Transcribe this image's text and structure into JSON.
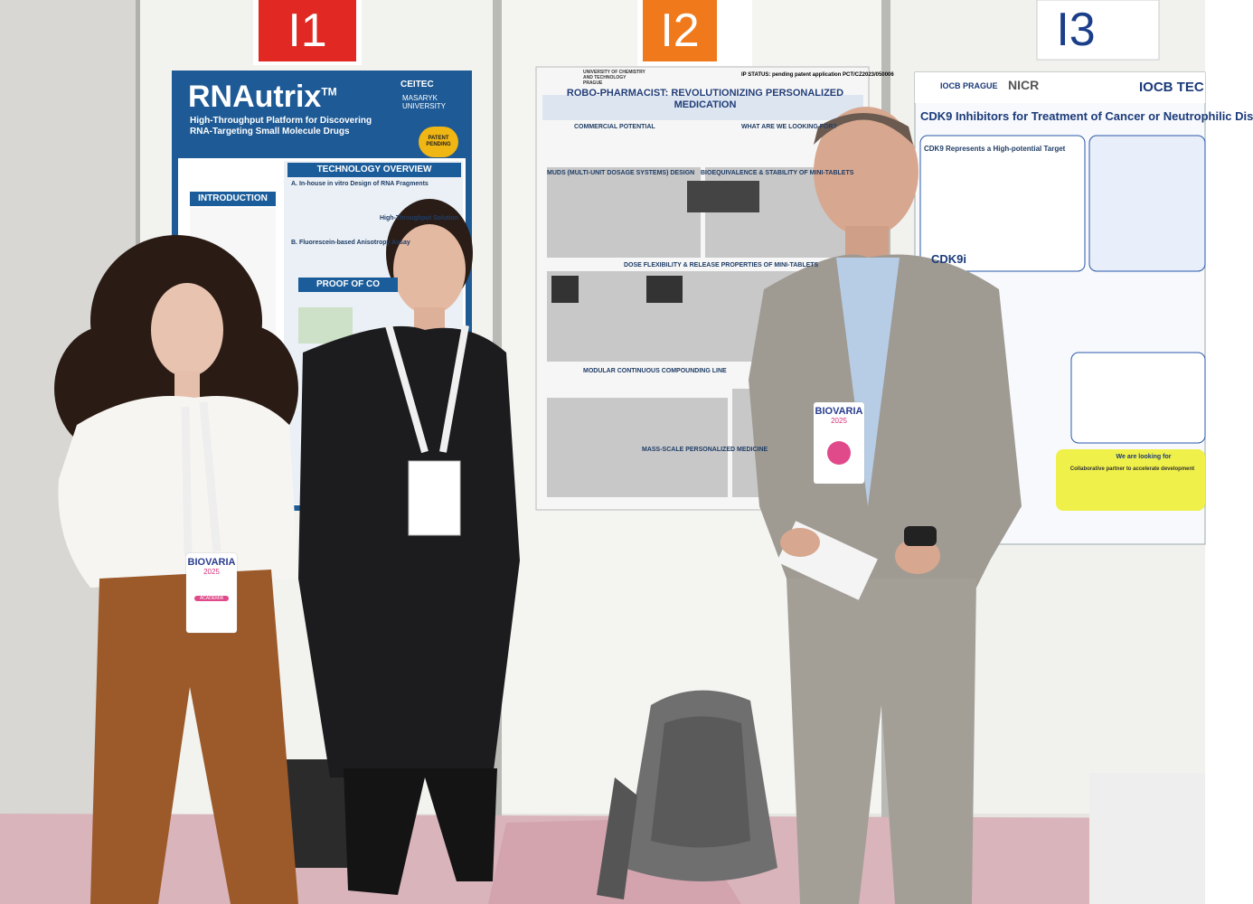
{
  "signs": [
    "I1",
    "I2",
    "I3"
  ],
  "poster_left": {
    "title": "RNAutrix",
    "title_mark": "TM",
    "subtitle": "High-Throughput Platform for Discovering RNA-Targeting Small Molecule Drugs",
    "logos": [
      "CEITEC",
      "MASARYK UNIVERSITY"
    ],
    "seal": "PATENT PENDING",
    "sections": [
      "INTRODUCTION",
      "TECHNOLOGY OVERVIEW",
      "A. In-house in vitro Design of RNA Fragments",
      "High-Throughput Solution",
      "B. Fluorescein-based Anisotropy Assay",
      "PROOF OF CO"
    ]
  },
  "poster_middle": {
    "ip_status": "IP STATUS: pending patent application PCT/CZ2023/050006",
    "institution": "UNIVERSITY OF CHEMISTRY AND TECHNOLOGY PRAGUE",
    "title": "ROBO-PHARMACIST: REVOLUTIONIZING PERSONALIZED MEDICATION",
    "sections": [
      "COMMERCIAL POTENTIAL",
      "WHAT ARE WE LOOKING FOR?",
      "MUDS (MULTI-UNIT DOSAGE SYSTEMS) DESIGN",
      "BIOEQUIVALENCE & STABILITY OF MINI-TABLETS",
      "DOSE FLEXIBILITY & RELEASE PROPERTIES OF MINI-TABLETS",
      "MODULAR CONTINUOUS COMPOUNDING LINE",
      "MASS-SCALE PERSONALIZED MEDICINE"
    ]
  },
  "poster_right": {
    "logos": [
      "IOCB PRAGUE",
      "NICR",
      "IOCB TEC"
    ],
    "title": "CDK9 Inhibitors for Treatment of Cancer or Neutrophilic Dis",
    "sections": [
      "CDK9 Represents a High-potential Target",
      "CDK9i",
      "We are looking for",
      "Collaborative partner to accelerate development"
    ]
  },
  "badges": [
    {
      "event": "BIOVARIA",
      "year": "2025",
      "tag": "ACADEMIA"
    },
    {
      "event": "BIOVARIA",
      "year": "2025"
    }
  ]
}
